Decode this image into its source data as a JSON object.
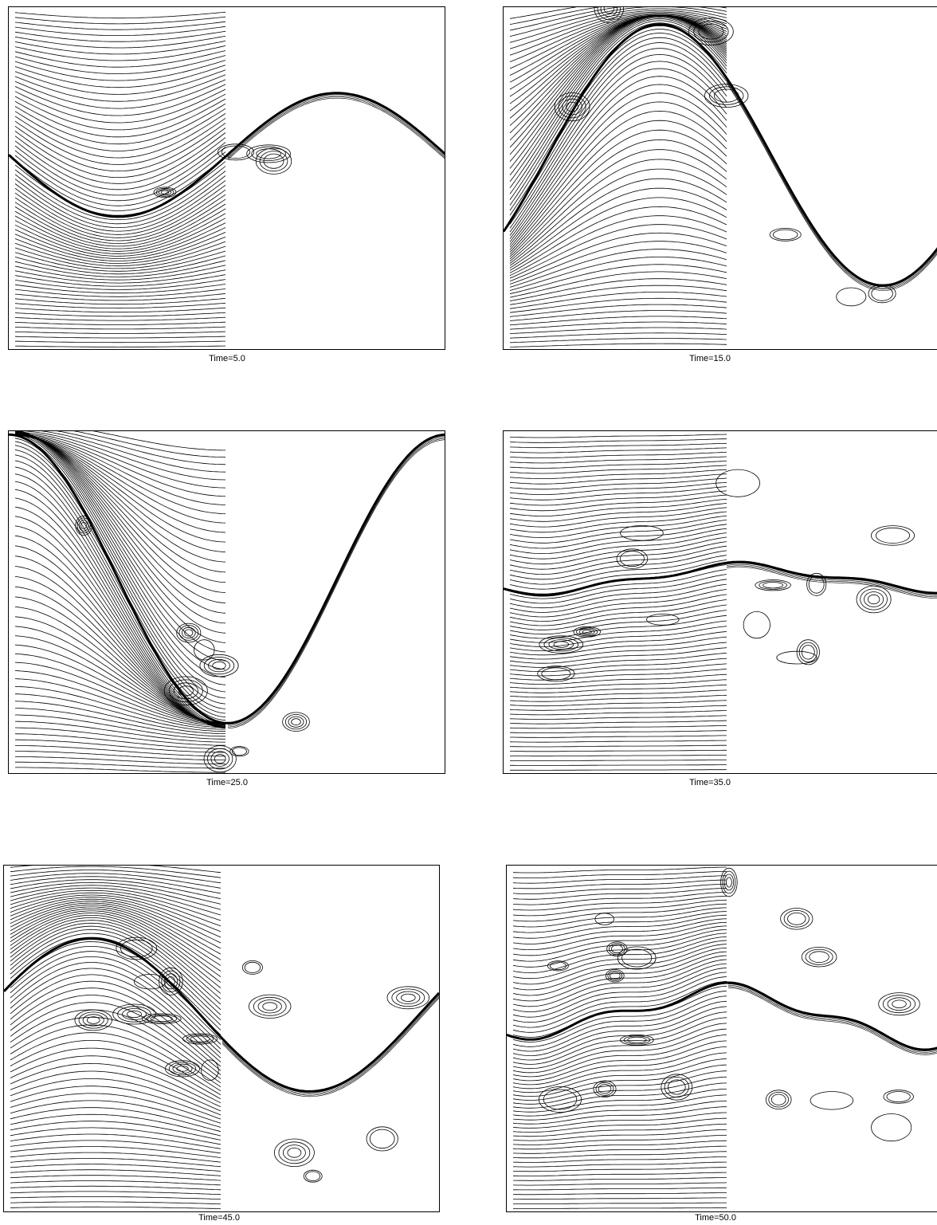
{
  "figure": {
    "panels": [
      {
        "caption": "Time=5.0",
        "amp": 0.18,
        "phase": 0.0,
        "chaos": 0.05
      },
      {
        "caption": "Time=15.0",
        "amp": 0.38,
        "phase": 0.4,
        "chaos": 0.25
      },
      {
        "caption": "Time=25.0",
        "amp": 0.42,
        "phase": 0.75,
        "chaos": 0.45
      },
      {
        "caption": "Time=35.0",
        "amp": 0.05,
        "phase": 0.2,
        "chaos": 0.75
      },
      {
        "caption": "Time=45.0",
        "amp": 0.22,
        "phase": 0.55,
        "chaos": 0.95
      },
      {
        "caption": "Time=50.0",
        "amp": 0.1,
        "phase": 0.3,
        "chaos": 1.0
      }
    ]
  }
}
